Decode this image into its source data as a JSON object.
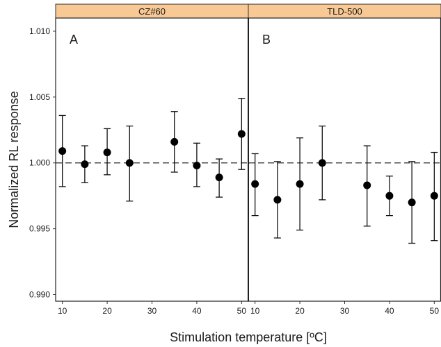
{
  "chart_data": {
    "type": "scatter",
    "xlabel": "Stimulation temperature [ºC]",
    "ylabel": "Normalized RL response",
    "ylim": [
      0.9895,
      1.011
    ],
    "xlim": [
      8.5,
      51.5
    ],
    "yticks": [
      "0.990",
      "0.995",
      "1.000",
      "1.005",
      "1.010"
    ],
    "xticks": [
      "10",
      "20",
      "30",
      "40",
      "50"
    ],
    "reference_line": 1.0,
    "strip_color": "#f9c995",
    "point_color": "#000000",
    "panels": [
      {
        "strip": "CZ#60",
        "label": "A",
        "points": [
          {
            "x": 10,
            "y": 1.0009,
            "lo": 0.9982,
            "hi": 1.0036
          },
          {
            "x": 15,
            "y": 0.9999,
            "lo": 0.9985,
            "hi": 1.0013
          },
          {
            "x": 20,
            "y": 1.0008,
            "lo": 0.9991,
            "hi": 1.0026
          },
          {
            "x": 25,
            "y": 1.0,
            "lo": 0.9971,
            "hi": 1.0028
          },
          {
            "x": 35,
            "y": 1.0016,
            "lo": 0.9993,
            "hi": 1.0039
          },
          {
            "x": 40,
            "y": 0.9998,
            "lo": 0.9982,
            "hi": 1.0015
          },
          {
            "x": 45,
            "y": 0.9989,
            "lo": 0.9974,
            "hi": 1.0003
          },
          {
            "x": 50,
            "y": 1.0022,
            "lo": 0.9995,
            "hi": 1.0049
          }
        ]
      },
      {
        "strip": "TLD-500",
        "label": "B",
        "points": [
          {
            "x": 10,
            "y": 0.9984,
            "lo": 0.996,
            "hi": 1.0007
          },
          {
            "x": 15,
            "y": 0.9972,
            "lo": 0.9943,
            "hi": 1.0001
          },
          {
            "x": 20,
            "y": 0.9984,
            "lo": 0.9949,
            "hi": 1.0019
          },
          {
            "x": 25,
            "y": 1.0,
            "lo": 0.9972,
            "hi": 1.0028
          },
          {
            "x": 35,
            "y": 0.9983,
            "lo": 0.9952,
            "hi": 1.0013
          },
          {
            "x": 40,
            "y": 0.9975,
            "lo": 0.996,
            "hi": 0.999
          },
          {
            "x": 45,
            "y": 0.997,
            "lo": 0.9939,
            "hi": 1.0001
          },
          {
            "x": 50,
            "y": 0.9975,
            "lo": 0.9941,
            "hi": 1.0008
          }
        ]
      }
    ]
  }
}
